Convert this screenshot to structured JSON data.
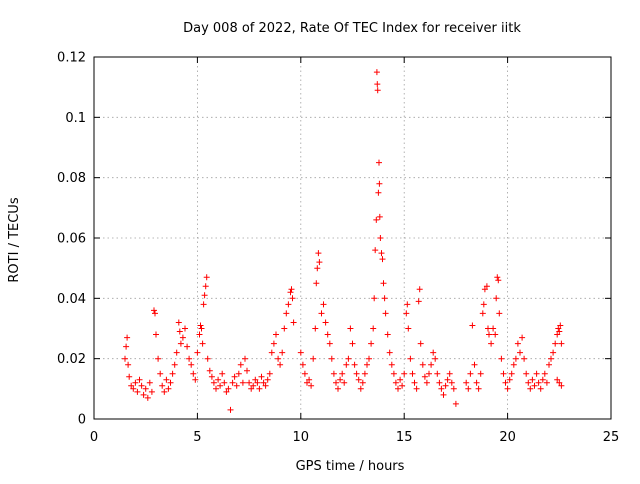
{
  "chart_data": {
    "type": "scatter",
    "title": "Day 008 of 2022, Rate Of TEC Index for receiver iitk",
    "xlabel": "GPS time / hours",
    "ylabel": "ROTI / TECUs",
    "xlim": [
      0,
      25
    ],
    "ylim": [
      0,
      0.12
    ],
    "x_ticks": [
      "0",
      "5",
      "10",
      "15",
      "20",
      "25"
    ],
    "y_ticks": [
      "0",
      "0.02",
      "0.04",
      "0.06",
      "0.08",
      "0.1",
      "0.12"
    ],
    "grid": true,
    "legend": "none",
    "marker": "plus",
    "color": "#ff0000",
    "points": [
      [
        1.5,
        0.02
      ],
      [
        1.55,
        0.024
      ],
      [
        1.6,
        0.027
      ],
      [
        1.65,
        0.018
      ],
      [
        1.7,
        0.014
      ],
      [
        1.8,
        0.011
      ],
      [
        1.9,
        0.01
      ],
      [
        2.0,
        0.012
      ],
      [
        2.1,
        0.009
      ],
      [
        2.2,
        0.013
      ],
      [
        2.3,
        0.011
      ],
      [
        2.4,
        0.008
      ],
      [
        2.5,
        0.01
      ],
      [
        2.6,
        0.007
      ],
      [
        2.7,
        0.012
      ],
      [
        2.8,
        0.009
      ],
      [
        2.9,
        0.036
      ],
      [
        2.95,
        0.035
      ],
      [
        3.0,
        0.028
      ],
      [
        3.1,
        0.02
      ],
      [
        3.2,
        0.015
      ],
      [
        3.3,
        0.011
      ],
      [
        3.4,
        0.009
      ],
      [
        3.5,
        0.013
      ],
      [
        3.6,
        0.01
      ],
      [
        3.7,
        0.012
      ],
      [
        3.8,
        0.015
      ],
      [
        3.9,
        0.018
      ],
      [
        4.0,
        0.022
      ],
      [
        4.1,
        0.032
      ],
      [
        4.15,
        0.029
      ],
      [
        4.2,
        0.025
      ],
      [
        4.3,
        0.027
      ],
      [
        4.4,
        0.03
      ],
      [
        4.5,
        0.024
      ],
      [
        4.6,
        0.02
      ],
      [
        4.7,
        0.018
      ],
      [
        4.8,
        0.015
      ],
      [
        4.9,
        0.013
      ],
      [
        5.0,
        0.022
      ],
      [
        5.1,
        0.028
      ],
      [
        5.15,
        0.031
      ],
      [
        5.2,
        0.03
      ],
      [
        5.25,
        0.025
      ],
      [
        5.3,
        0.038
      ],
      [
        5.35,
        0.041
      ],
      [
        5.4,
        0.044
      ],
      [
        5.45,
        0.047
      ],
      [
        5.5,
        0.02
      ],
      [
        5.6,
        0.016
      ],
      [
        5.7,
        0.014
      ],
      [
        5.8,
        0.012
      ],
      [
        5.9,
        0.01
      ],
      [
        6.0,
        0.013
      ],
      [
        6.1,
        0.011
      ],
      [
        6.2,
        0.015
      ],
      [
        6.3,
        0.012
      ],
      [
        6.4,
        0.009
      ],
      [
        6.5,
        0.01
      ],
      [
        6.6,
        0.003
      ],
      [
        6.7,
        0.012
      ],
      [
        6.8,
        0.014
      ],
      [
        6.9,
        0.011
      ],
      [
        7.0,
        0.015
      ],
      [
        7.1,
        0.018
      ],
      [
        7.2,
        0.012
      ],
      [
        7.3,
        0.02
      ],
      [
        7.4,
        0.016
      ],
      [
        7.5,
        0.012
      ],
      [
        7.6,
        0.01
      ],
      [
        7.7,
        0.011
      ],
      [
        7.8,
        0.013
      ],
      [
        7.9,
        0.012
      ],
      [
        8.0,
        0.01
      ],
      [
        8.1,
        0.014
      ],
      [
        8.2,
        0.012
      ],
      [
        8.3,
        0.011
      ],
      [
        8.4,
        0.013
      ],
      [
        8.5,
        0.015
      ],
      [
        8.6,
        0.022
      ],
      [
        8.7,
        0.025
      ],
      [
        8.8,
        0.028
      ],
      [
        8.9,
        0.02
      ],
      [
        9.0,
        0.018
      ],
      [
        9.1,
        0.022
      ],
      [
        9.2,
        0.03
      ],
      [
        9.3,
        0.035
      ],
      [
        9.4,
        0.038
      ],
      [
        9.5,
        0.042
      ],
      [
        9.55,
        0.043
      ],
      [
        9.6,
        0.04
      ],
      [
        9.65,
        0.032
      ],
      [
        10.0,
        0.022
      ],
      [
        10.1,
        0.018
      ],
      [
        10.2,
        0.015
      ],
      [
        10.3,
        0.012
      ],
      [
        10.4,
        0.013
      ],
      [
        10.5,
        0.011
      ],
      [
        10.6,
        0.02
      ],
      [
        10.7,
        0.03
      ],
      [
        10.75,
        0.045
      ],
      [
        10.8,
        0.05
      ],
      [
        10.85,
        0.055
      ],
      [
        10.9,
        0.052
      ],
      [
        11.0,
        0.035
      ],
      [
        11.1,
        0.038
      ],
      [
        11.2,
        0.032
      ],
      [
        11.3,
        0.028
      ],
      [
        11.4,
        0.025
      ],
      [
        11.5,
        0.02
      ],
      [
        11.6,
        0.015
      ],
      [
        11.7,
        0.012
      ],
      [
        11.8,
        0.01
      ],
      [
        11.9,
        0.013
      ],
      [
        12.0,
        0.015
      ],
      [
        12.1,
        0.012
      ],
      [
        12.2,
        0.018
      ],
      [
        12.3,
        0.02
      ],
      [
        12.4,
        0.03
      ],
      [
        12.5,
        0.025
      ],
      [
        12.6,
        0.018
      ],
      [
        12.7,
        0.015
      ],
      [
        12.8,
        0.013
      ],
      [
        12.9,
        0.01
      ],
      [
        13.0,
        0.012
      ],
      [
        13.1,
        0.015
      ],
      [
        13.2,
        0.018
      ],
      [
        13.3,
        0.02
      ],
      [
        13.4,
        0.025
      ],
      [
        13.5,
        0.03
      ],
      [
        13.55,
        0.04
      ],
      [
        13.6,
        0.056
      ],
      [
        13.65,
        0.066
      ],
      [
        13.68,
        0.115
      ],
      [
        13.7,
        0.111
      ],
      [
        13.72,
        0.109
      ],
      [
        13.75,
        0.075
      ],
      [
        13.78,
        0.085
      ],
      [
        13.8,
        0.078
      ],
      [
        13.82,
        0.067
      ],
      [
        13.85,
        0.06
      ],
      [
        13.9,
        0.055
      ],
      [
        13.95,
        0.053
      ],
      [
        14.0,
        0.045
      ],
      [
        14.05,
        0.04
      ],
      [
        14.1,
        0.035
      ],
      [
        14.2,
        0.028
      ],
      [
        14.3,
        0.022
      ],
      [
        14.4,
        0.018
      ],
      [
        14.5,
        0.015
      ],
      [
        14.6,
        0.012
      ],
      [
        14.7,
        0.01
      ],
      [
        14.8,
        0.013
      ],
      [
        14.9,
        0.011
      ],
      [
        15.0,
        0.015
      ],
      [
        15.1,
        0.035
      ],
      [
        15.15,
        0.038
      ],
      [
        15.2,
        0.03
      ],
      [
        15.3,
        0.02
      ],
      [
        15.4,
        0.015
      ],
      [
        15.5,
        0.012
      ],
      [
        15.6,
        0.01
      ],
      [
        15.7,
        0.039
      ],
      [
        15.75,
        0.043
      ],
      [
        15.8,
        0.025
      ],
      [
        15.9,
        0.018
      ],
      [
        16.0,
        0.014
      ],
      [
        16.1,
        0.012
      ],
      [
        16.2,
        0.015
      ],
      [
        16.3,
        0.018
      ],
      [
        16.4,
        0.022
      ],
      [
        16.5,
        0.02
      ],
      [
        16.6,
        0.015
      ],
      [
        16.7,
        0.012
      ],
      [
        16.8,
        0.01
      ],
      [
        16.9,
        0.008
      ],
      [
        17.0,
        0.011
      ],
      [
        17.1,
        0.013
      ],
      [
        17.2,
        0.015
      ],
      [
        17.3,
        0.012
      ],
      [
        17.4,
        0.01
      ],
      [
        17.5,
        0.005
      ],
      [
        18.0,
        0.012
      ],
      [
        18.1,
        0.01
      ],
      [
        18.2,
        0.015
      ],
      [
        18.3,
        0.031
      ],
      [
        18.4,
        0.018
      ],
      [
        18.5,
        0.012
      ],
      [
        18.6,
        0.01
      ],
      [
        18.7,
        0.015
      ],
      [
        18.8,
        0.035
      ],
      [
        18.85,
        0.038
      ],
      [
        18.9,
        0.043
      ],
      [
        19.0,
        0.044
      ],
      [
        19.05,
        0.03
      ],
      [
        19.1,
        0.028
      ],
      [
        19.2,
        0.025
      ],
      [
        19.3,
        0.03
      ],
      [
        19.4,
        0.028
      ],
      [
        19.45,
        0.04
      ],
      [
        19.5,
        0.047
      ],
      [
        19.55,
        0.046
      ],
      [
        19.6,
        0.035
      ],
      [
        19.7,
        0.02
      ],
      [
        19.8,
        0.015
      ],
      [
        19.9,
        0.012
      ],
      [
        20.0,
        0.01
      ],
      [
        20.1,
        0.013
      ],
      [
        20.2,
        0.015
      ],
      [
        20.3,
        0.018
      ],
      [
        20.4,
        0.02
      ],
      [
        20.5,
        0.025
      ],
      [
        20.6,
        0.022
      ],
      [
        20.7,
        0.027
      ],
      [
        20.8,
        0.02
      ],
      [
        20.9,
        0.015
      ],
      [
        21.0,
        0.012
      ],
      [
        21.1,
        0.01
      ],
      [
        21.2,
        0.013
      ],
      [
        21.3,
        0.011
      ],
      [
        21.4,
        0.015
      ],
      [
        21.5,
        0.012
      ],
      [
        21.6,
        0.01
      ],
      [
        21.7,
        0.013
      ],
      [
        21.8,
        0.015
      ],
      [
        21.9,
        0.012
      ],
      [
        22.0,
        0.018
      ],
      [
        22.1,
        0.02
      ],
      [
        22.2,
        0.022
      ],
      [
        22.3,
        0.025
      ],
      [
        22.4,
        0.028
      ],
      [
        22.45,
        0.03
      ],
      [
        22.5,
        0.029
      ],
      [
        22.55,
        0.031
      ],
      [
        22.6,
        0.025
      ],
      [
        22.4,
        0.013
      ],
      [
        22.5,
        0.012
      ],
      [
        22.6,
        0.011
      ]
    ]
  }
}
